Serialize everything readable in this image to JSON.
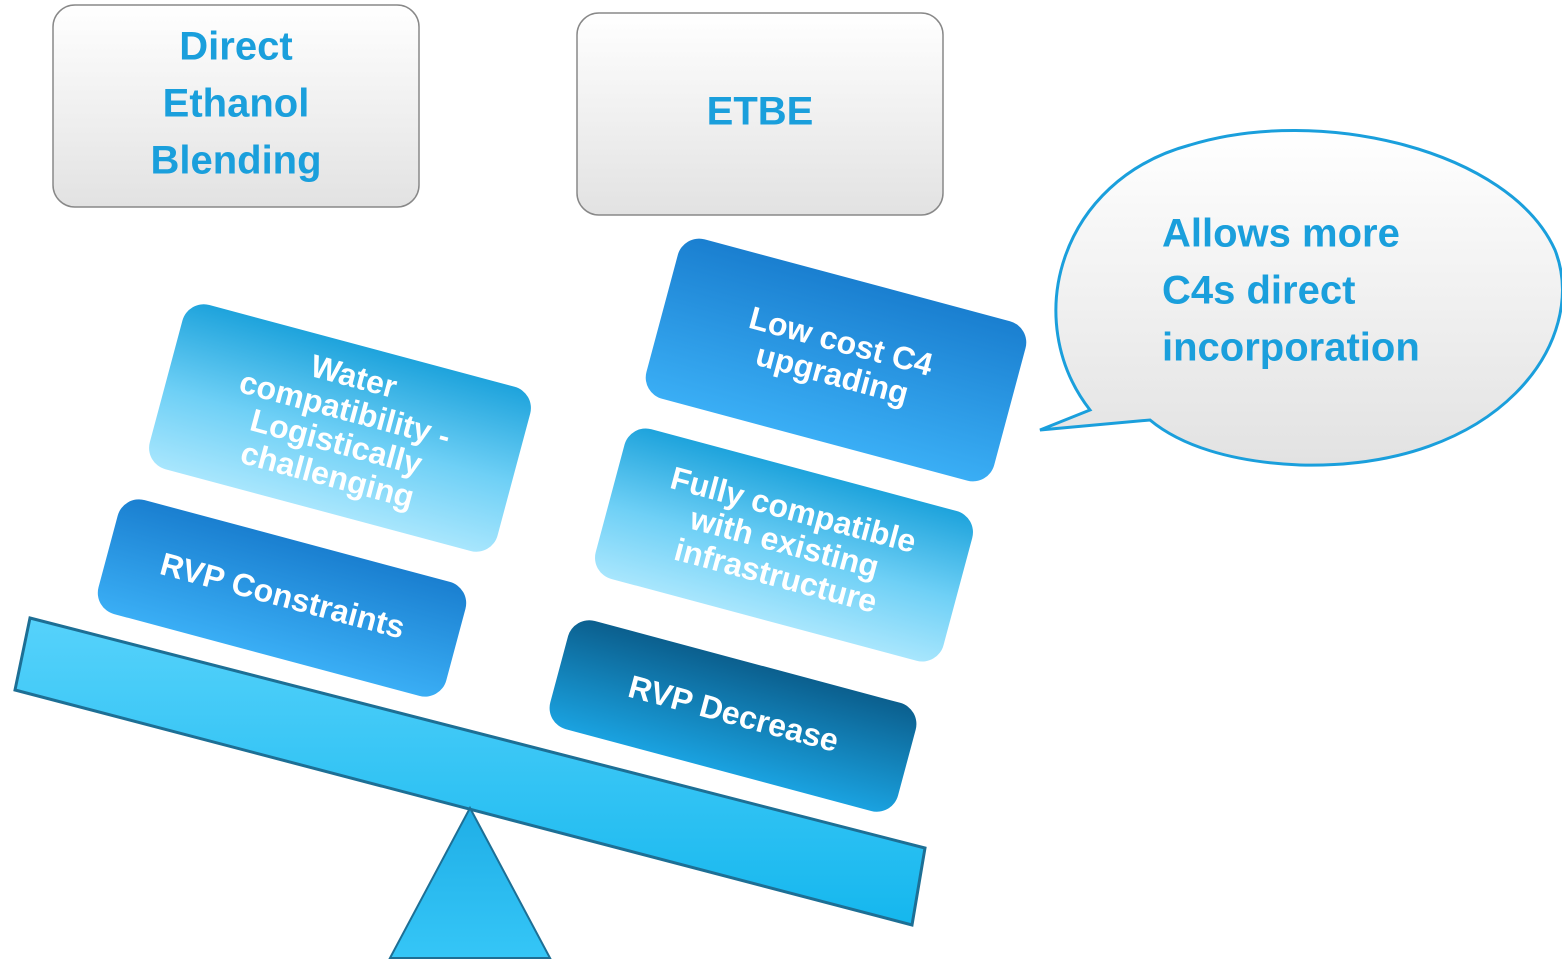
{
  "headers": [
    {
      "lines": [
        "Direct",
        "Ethanol",
        "Blending"
      ]
    },
    {
      "lines": [
        "ETBE"
      ]
    }
  ],
  "left_items": [
    {
      "lines": [
        "Water",
        "compatibility -",
        "Logistically",
        "challenging"
      ]
    },
    {
      "lines": [
        "RVP Constraints"
      ]
    }
  ],
  "right_items": [
    {
      "lines": [
        "Low cost C4",
        "upgrading"
      ]
    },
    {
      "lines": [
        "Fully compatible",
        "with existing",
        "infrastructure"
      ]
    },
    {
      "lines": [
        "RVP Decrease"
      ]
    }
  ],
  "callout": {
    "lines": [
      "Allows more",
      "C4s direct",
      "incorporation"
    ]
  }
}
